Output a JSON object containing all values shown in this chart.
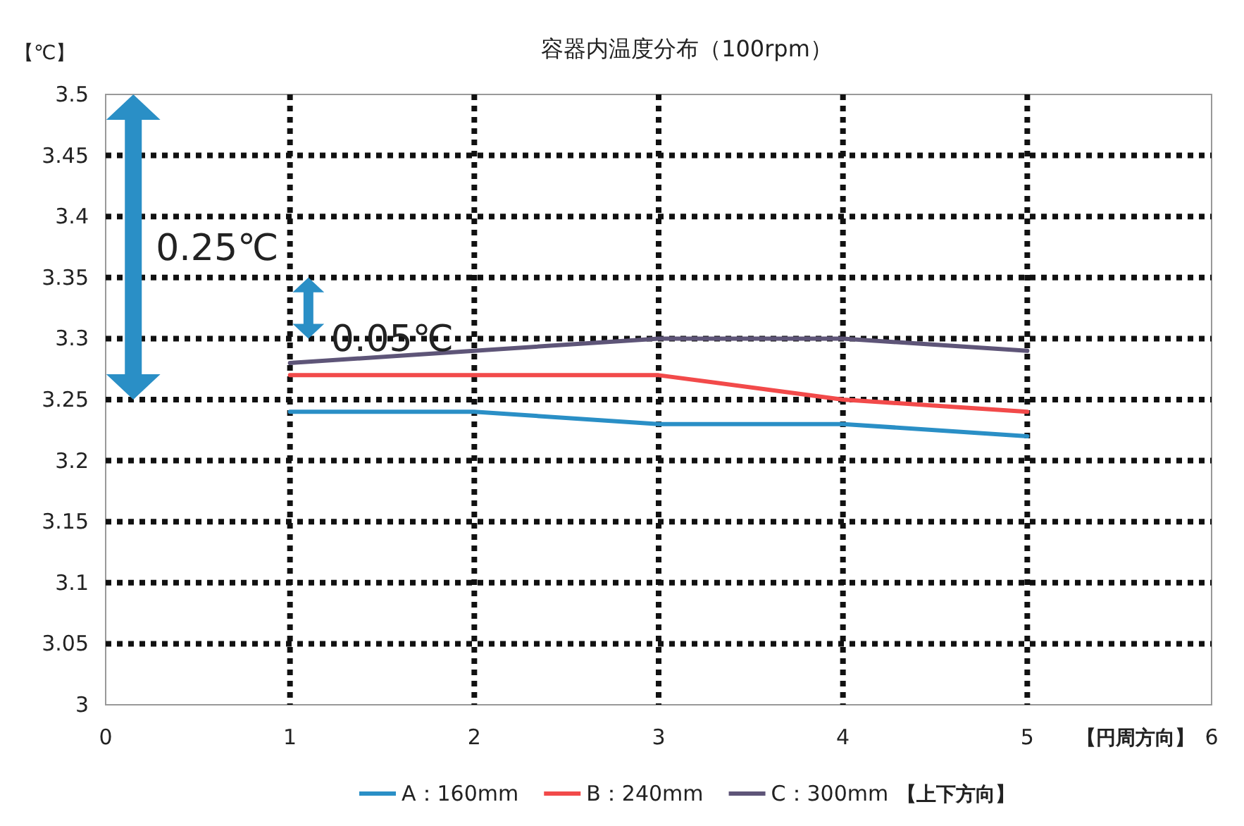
{
  "chart_data": {
    "type": "line",
    "title": "容器内温度分布（100rpm）",
    "ylabel": "【℃】",
    "xlabel": "【円周方向】",
    "legend_title": "【上下方向】",
    "x": [
      1,
      2,
      3,
      4,
      5
    ],
    "series": [
      {
        "name": "A：160mm",
        "color": "#2a8fc6",
        "values": [
          3.24,
          3.24,
          3.23,
          3.23,
          3.22
        ]
      },
      {
        "name": "B：240mm",
        "color": "#f24a4a",
        "values": [
          3.27,
          3.27,
          3.27,
          3.25,
          3.24
        ]
      },
      {
        "name": "C：300mm",
        "color": "#5e5578",
        "values": [
          3.28,
          3.29,
          3.3,
          3.3,
          3.29
        ]
      }
    ],
    "xlim": [
      0,
      6
    ],
    "xticks": [
      0,
      1,
      2,
      3,
      4,
      5,
      6
    ],
    "ylim": [
      3,
      3.5
    ],
    "yticks": [
      3,
      3.05,
      3.1,
      3.15,
      3.2,
      3.25,
      3.3,
      3.35,
      3.4,
      3.45,
      3.5
    ],
    "grid": true,
    "legend": "bottom",
    "marker": "none",
    "line_style": "solid",
    "annotations": [
      "0.25℃",
      "0.05℃"
    ]
  }
}
